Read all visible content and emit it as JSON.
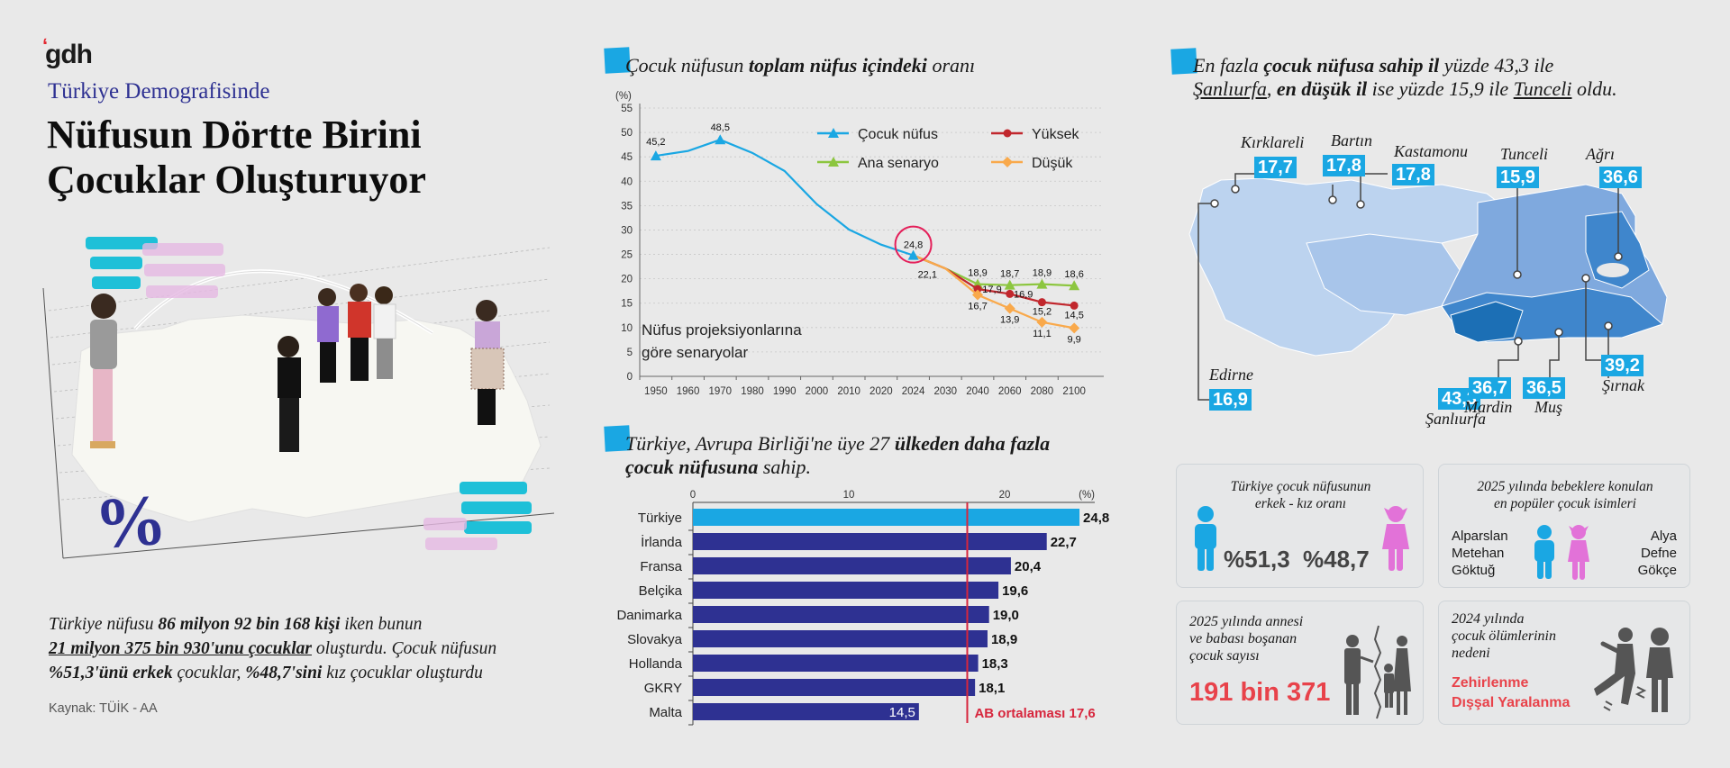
{
  "header": {
    "logo": "gdh",
    "subtitle": "Türkiye Demografisinde",
    "title_line1": "Nüfusun Dörtte Birini",
    "title_line2": "Çocuklar Oluşturuyor"
  },
  "illustration": {
    "percent_symbol": "%"
  },
  "summary": {
    "part1": "Türkiye nüfusu ",
    "part2": "86 milyon 92 bin 168 kişi",
    "part3": " iken bunun",
    "part4": "21 milyon 375 bin 930'unu çocuklar",
    "part5": " oluşturdu. Çocuk nüfusun",
    "part6": "%51,3'ünü erkek",
    "part7": " çocuklar, ",
    "part8": "%48,7'sini",
    "part9": " kız çocuklar oluşturdu"
  },
  "source": "Kaynak: TÜİK - AA",
  "line_section": {
    "title_a": "Çocuk nüfusun ",
    "title_b": "toplam nüfus içindeki",
    "title_c": " oranı",
    "scenario_note_1": "Nüfus projeksiyonlarına",
    "scenario_note_2": "göre senaryolar"
  },
  "bar_section": {
    "title_a": "Türkiye, Avrupa Birliği'ne üye 27 ",
    "title_b": "ülkeden daha fazla",
    "title_c": "çocuk nüfusuna",
    "title_d": " sahip.",
    "eu_avg_label": "AB ortalaması 17,6"
  },
  "map_section": {
    "title_a": "En fazla ",
    "title_b": "çocuk nüfusa sahip il",
    "title_c": " yüzde 43,3 ile",
    "title_d": "Şanlıurfa",
    "title_e": ", ",
    "title_f": "en düşük il",
    "title_g": " ise yüzde 15,9 ile ",
    "title_h": "Tunceli",
    "title_i": " oldu.",
    "provinces": [
      {
        "name": "Kırklareli",
        "value": "17,7"
      },
      {
        "name": "Bartın",
        "value": "17,8"
      },
      {
        "name": "Kastamonu",
        "value": "17,8"
      },
      {
        "name": "Tunceli",
        "value": "15,9"
      },
      {
        "name": "Ağrı",
        "value": "36,6"
      },
      {
        "name": "Edirne",
        "value": "16,9"
      },
      {
        "name": "Şanlıurfa",
        "value": "43,3"
      },
      {
        "name": "Mardin",
        "value": "36,7"
      },
      {
        "name": "Muş",
        "value": "36,5"
      },
      {
        "name": "Şırnak",
        "value": "39,2"
      }
    ]
  },
  "cards": {
    "gender": {
      "title_1": "Türkiye çocuk nüfusunun",
      "title_2": "erkek - kız oranı",
      "male_pct": "%51,3",
      "female_pct": "%48,7",
      "male_color": "#1aa7e3",
      "female_color": "#e272d8"
    },
    "names": {
      "title_1": "2025 yılında bebeklere konulan",
      "title_2": "en popüler çocuk isimleri",
      "boys": [
        "Alparslan",
        "Metehan",
        "Göktuğ"
      ],
      "girls": [
        "Alya",
        "Defne",
        "Gökçe"
      ]
    },
    "divorce": {
      "title_1": "2025 yılında annesi",
      "title_2": "ve babası boşanan",
      "title_3": "çocuk sayısı",
      "value": "191 bin 371"
    },
    "deaths": {
      "title_1": "2024 yılında",
      "title_2": "çocuk ölümlerinin",
      "title_3": "nedeni",
      "cause_1": "Zehirlenme",
      "cause_2": "Dışşal Yaralanma"
    }
  },
  "chart_data": [
    {
      "type": "line",
      "title": "Çocuk nüfusun toplam nüfus içindeki oranı",
      "ylabel": "(%)",
      "xlabel": "",
      "ylim": [
        0,
        55
      ],
      "yticks": [
        0,
        5,
        10,
        15,
        20,
        25,
        30,
        35,
        40,
        45,
        50,
        55
      ],
      "grid": true,
      "legend_position": "top-right",
      "categories": [
        "1950",
        "1960",
        "1970",
        "1980",
        "1990",
        "2000",
        "2010",
        "2020",
        "2024",
        "2030",
        "2040",
        "2060",
        "2080",
        "2100"
      ],
      "series": [
        {
          "name": "Çocuk nüfus",
          "color": "#1aa7e3",
          "marker": "triangle",
          "values": [
            45.2,
            46.2,
            48.5,
            45.8,
            42.1,
            35.3,
            30.1,
            27.0,
            24.8,
            null,
            null,
            null,
            null,
            null
          ]
        },
        {
          "name": "Ana senaryo",
          "color": "#8cc63f",
          "marker": "triangle",
          "values": [
            null,
            null,
            null,
            null,
            null,
            null,
            null,
            null,
            24.8,
            22.1,
            18.9,
            18.7,
            18.9,
            18.6
          ]
        },
        {
          "name": "Yüksek",
          "color": "#c1272d",
          "marker": "circle",
          "values": [
            null,
            null,
            null,
            null,
            null,
            null,
            null,
            null,
            24.8,
            22.1,
            17.9,
            16.9,
            15.2,
            14.5
          ]
        },
        {
          "name": "Düşük",
          "color": "#f9a94b",
          "marker": "diamond",
          "values": [
            null,
            null,
            null,
            null,
            null,
            null,
            null,
            null,
            24.8,
            22.1,
            16.7,
            13.9,
            11.1,
            9.9
          ]
        }
      ],
      "annotations": [
        "45,2",
        "48,5",
        "24,8 (circled)",
        "22,1",
        "Nüfus projeksiyonlarına göre senaryolar"
      ]
    },
    {
      "type": "bar",
      "orientation": "horizontal",
      "title": "Türkiye, Avrupa Birliği'ne üye 27 ülkeden daha fazla çocuk nüfusuna sahip.",
      "xlabel": "(%)",
      "xlim": [
        0,
        25
      ],
      "xticks": [
        0,
        10,
        20
      ],
      "categories": [
        "Türkiye",
        "İrlanda",
        "Fransa",
        "Belçika",
        "Danimarka",
        "Slovakya",
        "Hollanda",
        "GKRY",
        "Malta"
      ],
      "values": [
        24.8,
        22.7,
        20.4,
        19.6,
        19.0,
        18.9,
        18.3,
        18.1,
        14.5
      ],
      "value_labels": [
        "24,8",
        "22,7",
        "20,4",
        "19,6",
        "19,0",
        "18,9",
        "18,3",
        "18,1",
        "14,5"
      ],
      "colors": {
        "highlight": "#1aa7e3",
        "default": "#2e3192",
        "reference_line": "#d7263d"
      },
      "reference_line": {
        "value": 17.6,
        "label": "AB ortalaması 17,6"
      }
    }
  ]
}
